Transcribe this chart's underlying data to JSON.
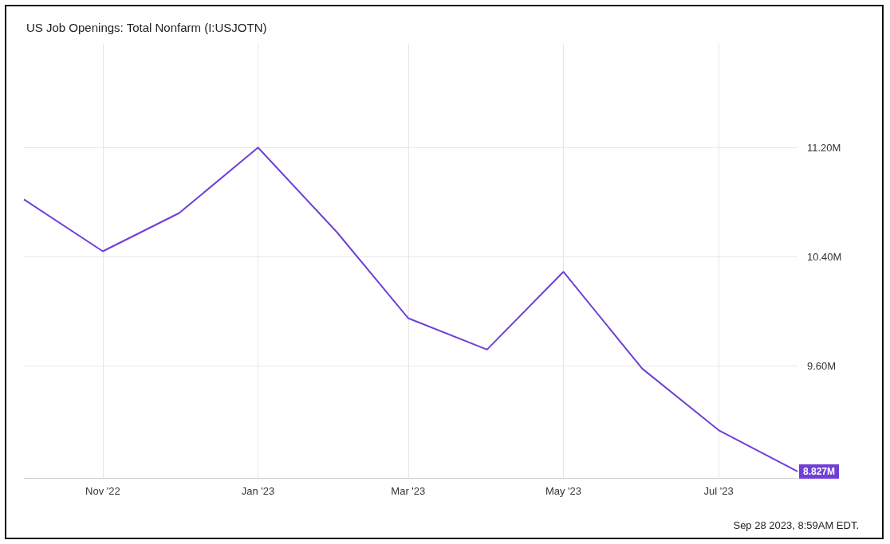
{
  "chart_data": {
    "type": "line",
    "title": "US Job Openings: Total Nonfarm (I:USJOTN)",
    "x": [
      "2022-10",
      "2022-11",
      "2022-12",
      "2023-01",
      "2023-02",
      "2023-03",
      "2023-04",
      "2023-05",
      "2023-06",
      "2023-07",
      "2023-08"
    ],
    "series": [
      {
        "color": "#6f3fd6",
        "values": [
          10.82,
          10.44,
          10.72,
          11.2,
          10.58,
          9.95,
          9.72,
          10.29,
          9.58,
          9.13,
          8.827
        ],
        "value_labels": [
          null,
          null,
          null,
          null,
          null,
          null,
          null,
          null,
          null,
          null,
          "8.827M"
        ]
      }
    ],
    "xlim": [
      "2022-10-01",
      "2023-08-01"
    ],
    "xticks": [
      {
        "value": "2022-11",
        "label": "Nov '22"
      },
      {
        "value": "2023-01",
        "label": "Jan '23"
      },
      {
        "value": "2023-03",
        "label": "Mar '23"
      },
      {
        "value": "2023-05",
        "label": "May '23"
      },
      {
        "value": "2023-07",
        "label": "Jul '23"
      }
    ],
    "ylim": [
      8.78,
      11.96
    ],
    "yticks": [
      {
        "value": 9.6,
        "label": "9.60M"
      },
      {
        "value": 10.4,
        "label": "10.40M"
      },
      {
        "value": 11.2,
        "label": "11.20M"
      }
    ],
    "grid": true,
    "line_style": "solid",
    "annotations": [
      "Sep 28 2023, 8:59AM EDT."
    ]
  }
}
